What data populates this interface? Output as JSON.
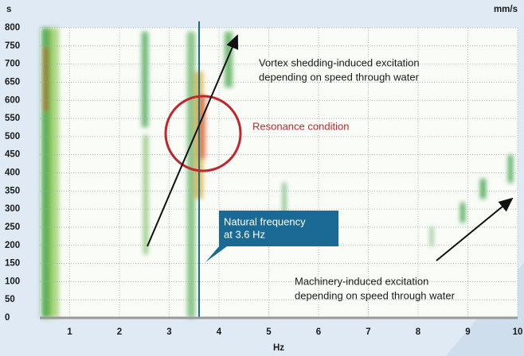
{
  "chart_data": {
    "type": "heatmap-spectrogram",
    "y_axis_label": "s",
    "y2_axis_label": "mm/s",
    "x_axis_label": "Hz",
    "xlim": [
      0.4,
      10
    ],
    "xticks": [
      1,
      2,
      3,
      4,
      5,
      6,
      7,
      8,
      9,
      10
    ],
    "ylim": [
      0,
      800
    ],
    "yticks": [
      0,
      50,
      100,
      150,
      200,
      250,
      300,
      350,
      400,
      450,
      500,
      550,
      600,
      650,
      700,
      750,
      800
    ],
    "grid": true,
    "marker": {
      "x": 3.6,
      "color": "#1b6a95",
      "label_lines": [
        "Natural frequency",
        "at 3.6 Hz"
      ]
    },
    "annotations": [
      {
        "lines": [
          "Vortex shedding-induced excitation",
          "depending on speed through water"
        ]
      },
      {
        "lines": [
          "Resonance condition"
        ],
        "color": "#c0262d"
      },
      {
        "lines": [
          "Machinery-induced excitation",
          "depending on speed through water"
        ]
      }
    ]
  }
}
